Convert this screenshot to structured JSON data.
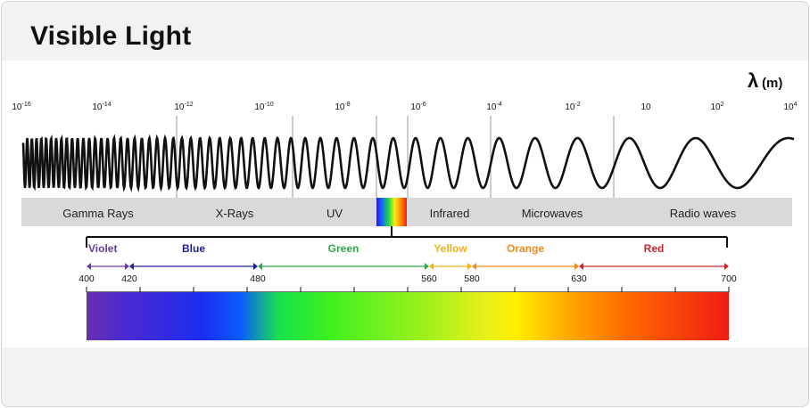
{
  "title": "Visible Light",
  "axis": {
    "symbol": "λ",
    "unit": "(m)"
  },
  "wavelength_ticks": [
    {
      "base": "10",
      "exp": "-16"
    },
    {
      "base": "10",
      "exp": "-14"
    },
    {
      "base": "10",
      "exp": "-12"
    },
    {
      "base": "10",
      "exp": "-10"
    },
    {
      "base": "10",
      "exp": "-8"
    },
    {
      "base": "10",
      "exp": "-6"
    },
    {
      "base": "10",
      "exp": "-4"
    },
    {
      "base": "10",
      "exp": "-2"
    },
    {
      "base": "10",
      "exp": ""
    },
    {
      "base": "10",
      "exp": "2"
    },
    {
      "base": "10",
      "exp": "4"
    }
  ],
  "bands": [
    {
      "label": "Gamma Rays"
    },
    {
      "label": "X-Rays"
    },
    {
      "label": "UV"
    },
    {
      "label": ""
    },
    {
      "label": "Infrared"
    },
    {
      "label": "Microwaves"
    },
    {
      "label": "Radio waves"
    }
  ],
  "visible_colors": [
    {
      "label": "Violet",
      "from_nm": 400,
      "to_nm": 420,
      "color": "#6a3d9a"
    },
    {
      "label": "Blue",
      "from_nm": 420,
      "to_nm": 480,
      "color": "#1f1fa0"
    },
    {
      "label": "Green",
      "from_nm": 480,
      "to_nm": 560,
      "color": "#2fa84f"
    },
    {
      "label": "Yellow",
      "from_nm": 560,
      "to_nm": 580,
      "color": "#f2b21c"
    },
    {
      "label": "Orange",
      "from_nm": 580,
      "to_nm": 630,
      "color": "#f08a1c"
    },
    {
      "label": "Red",
      "from_nm": 630,
      "to_nm": 700,
      "color": "#c8262d"
    }
  ],
  "nm_labels": [
    "400",
    "420",
    "480",
    "560",
    "580",
    "630",
    "700"
  ],
  "nm_range": [
    400,
    700
  ]
}
